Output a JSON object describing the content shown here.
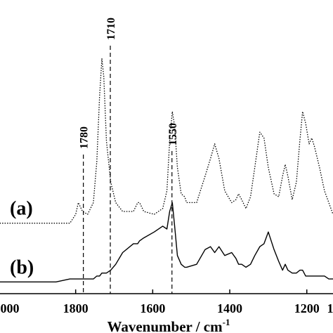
{
  "chart_data": {
    "type": "line",
    "xlabel": "Wavenumber / cm",
    "xlabel_superscript": "-1",
    "xlim": [
      2000,
      1132
    ],
    "ylim": [
      0,
      100
    ],
    "xticks": [
      {
        "value": 2000,
        "label": "000"
      },
      1800,
      1600,
      1400,
      1200,
      {
        "value": 1000,
        "label": "1"
      }
    ],
    "x": [
      1997,
      1851,
      1815,
      1800,
      1793,
      1782,
      1769,
      1754,
      1745,
      1738,
      1732,
      1727,
      1720,
      1709,
      1696,
      1678,
      1650,
      1639,
      1634,
      1623,
      1596,
      1574,
      1563,
      1556,
      1549,
      1543,
      1536,
      1526,
      1517,
      1512,
      1486,
      1464,
      1450,
      1439,
      1428,
      1413,
      1395,
      1384,
      1377,
      1369,
      1358,
      1346,
      1335,
      1322,
      1311,
      1300,
      1285,
      1273,
      1263,
      1256,
      1249,
      1238,
      1227,
      1218,
      1211,
      1203,
      1194,
      1187,
      1180,
      1167,
      1154,
      1143,
      1132
    ],
    "series": [
      {
        "name": "(a)",
        "color": "#000000",
        "style": "dotted",
        "values": [
          24,
          24,
          24,
          27,
          31,
          28,
          27,
          31,
          45,
          67,
          80,
          74,
          52,
          38,
          31,
          28,
          28,
          31,
          31,
          28,
          27,
          29,
          35,
          52,
          62,
          57,
          43,
          34,
          33,
          31,
          31,
          40,
          46,
          51,
          46,
          35,
          31,
          32,
          34,
          32,
          29,
          33,
          43,
          55,
          53,
          43,
          34,
          33,
          40,
          44,
          40,
          32,
          38,
          52,
          62,
          58,
          51,
          53,
          50,
          43,
          35,
          31,
          27
        ]
      },
      {
        "name": "(b)",
        "color": "#000000",
        "style": "solid",
        "values": [
          4,
          4,
          5,
          5,
          5,
          5,
          5,
          5,
          6,
          6,
          7,
          7,
          7,
          8,
          10,
          14,
          17,
          17,
          18,
          19,
          21,
          23,
          22,
          28,
          31,
          23,
          13,
          10,
          9,
          9,
          10,
          15,
          16,
          14,
          16,
          13,
          14,
          12,
          10,
          10,
          9,
          10,
          13,
          16,
          17,
          21,
          15,
          11,
          8,
          10,
          8,
          7,
          7,
          8,
          8,
          6,
          6,
          6,
          6,
          6,
          6,
          5,
          5
        ]
      }
    ],
    "annotations": [
      {
        "text": "1780",
        "x": 1780
      },
      {
        "text": "1710",
        "x": 1710
      },
      {
        "text": "1550",
        "x": 1550
      }
    ]
  }
}
